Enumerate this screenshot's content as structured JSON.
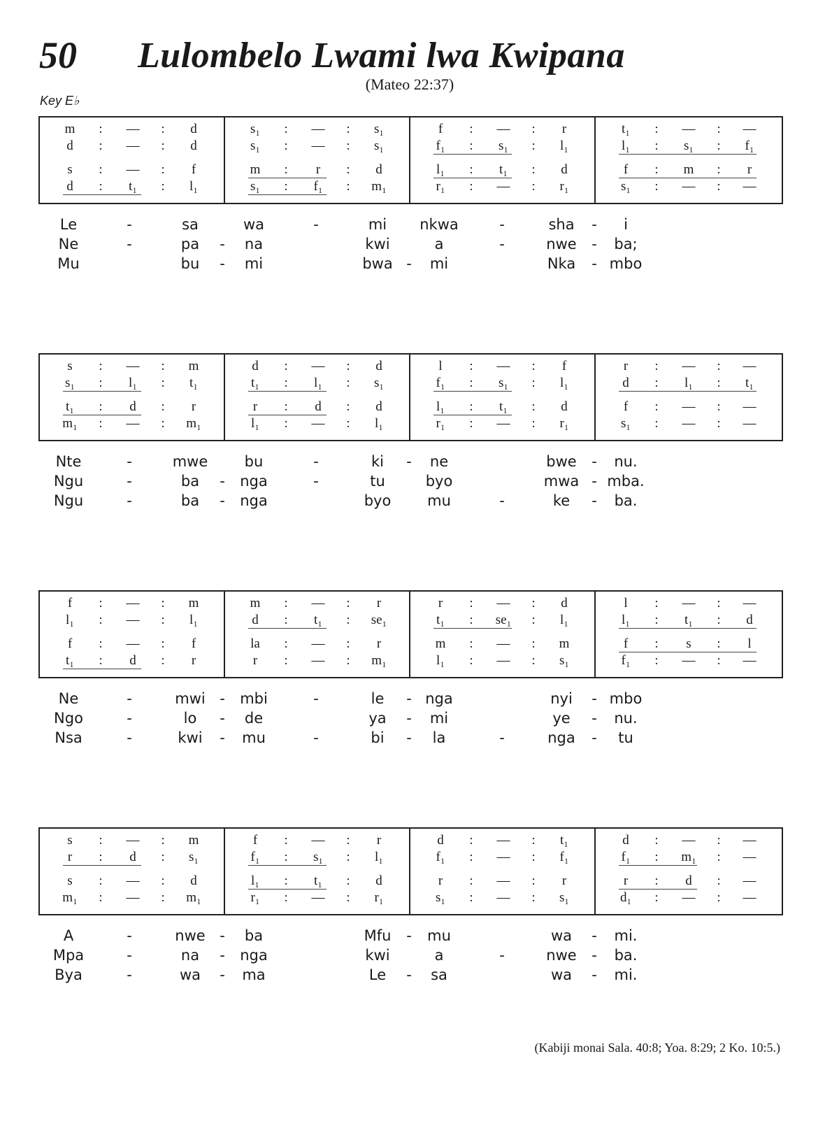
{
  "header": {
    "number": "50",
    "title": "Lulombelo Lwami lwa Kwipana",
    "scripture": "(Mateo 22:37)",
    "key": "Key E♭"
  },
  "systems": [
    {
      "measures": [
        {
          "rows": [
            {
              "n": [
                "m",
                "—",
                "d"
              ],
              "u": 0
            },
            {
              "n": [
                "d",
                "—",
                "d"
              ],
              "u": 0
            },
            {
              "n": [
                "s",
                "—",
                "f"
              ],
              "u": 0
            },
            {
              "n": [
                "d",
                "t₁",
                "l₁"
              ],
              "u": 2
            }
          ]
        },
        {
          "rows": [
            {
              "n": [
                "s₁",
                "—",
                "s₁"
              ],
              "u": 0
            },
            {
              "n": [
                "s₁",
                "—",
                "s₁"
              ],
              "u": 0
            },
            {
              "n": [
                "m",
                "r",
                "d"
              ],
              "u": 2
            },
            {
              "n": [
                "s₁",
                "f₁",
                "m₁"
              ],
              "u": 2
            }
          ]
        },
        {
          "rows": [
            {
              "n": [
                "f",
                "—",
                "r"
              ],
              "u": 0
            },
            {
              "n": [
                "f₁",
                "s₁",
                "l₁"
              ],
              "u": 2
            },
            {
              "n": [
                "l₁",
                "t₁",
                "d"
              ],
              "u": 2
            },
            {
              "n": [
                "r₁",
                "—",
                "r₁"
              ],
              "u": 0
            }
          ]
        },
        {
          "rows": [
            {
              "n": [
                "t₁",
                "—",
                "—"
              ],
              "u": 0
            },
            {
              "n": [
                "l₁",
                "s₁",
                "f₁"
              ],
              "u": 3
            },
            {
              "n": [
                "f",
                "m",
                "r"
              ],
              "u": 3
            },
            {
              "n": [
                "s₁",
                "—",
                "—"
              ],
              "u": 0
            }
          ]
        }
      ],
      "lyrics": [
        [
          "Le",
          "-",
          "sa",
          "",
          "wa",
          "-",
          "mi",
          "",
          "nkwa",
          "-",
          "sha",
          "-",
          "i"
        ],
        [
          "Ne",
          "-",
          "pa",
          "-",
          "na",
          "",
          "kwi",
          "",
          "a",
          "-",
          "nwe",
          "-",
          "ba;"
        ],
        [
          "Mu",
          "",
          "bu",
          "-",
          "mi",
          "",
          "bwa",
          "-",
          "mi",
          "",
          "Nka",
          "-",
          "mbo"
        ]
      ]
    },
    {
      "measures": [
        {
          "rows": [
            {
              "n": [
                "s",
                "—",
                "m"
              ],
              "u": 0
            },
            {
              "n": [
                "s₁",
                "l₁",
                "t₁"
              ],
              "u": 2
            },
            {
              "n": [
                "t₁",
                "d",
                "r"
              ],
              "u": 2
            },
            {
              "n": [
                "m₁",
                "—",
                "m₁"
              ],
              "u": 0
            }
          ]
        },
        {
          "rows": [
            {
              "n": [
                "d",
                "—",
                "d"
              ],
              "u": 0
            },
            {
              "n": [
                "t₁",
                "l₁",
                "s₁"
              ],
              "u": 2
            },
            {
              "n": [
                "r",
                "d",
                "d"
              ],
              "u": 2
            },
            {
              "n": [
                "l₁",
                "—",
                "l₁"
              ],
              "u": 0
            }
          ]
        },
        {
          "rows": [
            {
              "n": [
                "l",
                "—",
                "f"
              ],
              "u": 0
            },
            {
              "n": [
                "f₁",
                "s₁",
                "l₁"
              ],
              "u": 2
            },
            {
              "n": [
                "l₁",
                "t₁",
                "d"
              ],
              "u": 2
            },
            {
              "n": [
                "r₁",
                "—",
                "r₁"
              ],
              "u": 0
            }
          ]
        },
        {
          "rows": [
            {
              "n": [
                "r",
                "—",
                "—"
              ],
              "u": 0
            },
            {
              "n": [
                "d",
                "l₁",
                "t₁"
              ],
              "u": 3
            },
            {
              "n": [
                "f",
                "—",
                "—"
              ],
              "u": 0
            },
            {
              "n": [
                "s₁",
                "—",
                "—"
              ],
              "u": 0
            }
          ]
        }
      ],
      "lyrics": [
        [
          "Nte",
          "-",
          "mwe",
          "",
          "bu",
          "-",
          "ki",
          "-",
          "ne",
          "",
          "bwe",
          "-",
          "nu."
        ],
        [
          "Ngu",
          "-",
          "ba",
          "-",
          "nga",
          "-",
          "tu",
          "",
          "byo",
          "",
          "mwa",
          "-",
          "mba."
        ],
        [
          "Ngu",
          "-",
          "ba",
          "-",
          "nga",
          "",
          "byo",
          "",
          "mu",
          "-",
          "ke",
          "-",
          "ba."
        ]
      ]
    },
    {
      "measures": [
        {
          "rows": [
            {
              "n": [
                "f",
                "—",
                "m"
              ],
              "u": 0
            },
            {
              "n": [
                "l₁",
                "—",
                "l₁"
              ],
              "u": 0
            },
            {
              "n": [
                "f",
                "—",
                "f"
              ],
              "u": 0
            },
            {
              "n": [
                "t₁",
                "d",
                "r"
              ],
              "u": 2
            }
          ]
        },
        {
          "rows": [
            {
              "n": [
                "m",
                "—",
                "r"
              ],
              "u": 0
            },
            {
              "n": [
                "d",
                "t₁",
                "se₁"
              ],
              "u": 2
            },
            {
              "n": [
                "la",
                "—",
                "r"
              ],
              "u": 0
            },
            {
              "n": [
                "r",
                "—",
                "m₁"
              ],
              "u": 0
            }
          ]
        },
        {
          "rows": [
            {
              "n": [
                "r",
                "—",
                "d"
              ],
              "u": 0
            },
            {
              "n": [
                "t₁",
                "se₁",
                "l₁"
              ],
              "u": 2
            },
            {
              "n": [
                "m",
                "—",
                "m"
              ],
              "u": 0
            },
            {
              "n": [
                "l₁",
                "—",
                "s₁"
              ],
              "u": 0
            }
          ]
        },
        {
          "rows": [
            {
              "n": [
                "l",
                "—",
                "—"
              ],
              "u": 0
            },
            {
              "n": [
                "l₁",
                "t₁",
                "d"
              ],
              "u": 3
            },
            {
              "n": [
                "f",
                "s",
                "l"
              ],
              "u": 3
            },
            {
              "n": [
                "f₁",
                "—",
                "—"
              ],
              "u": 0
            }
          ]
        }
      ],
      "lyrics": [
        [
          "Ne",
          "-",
          "mwi",
          "-",
          "mbi",
          "-",
          "le",
          "-",
          "nga",
          "",
          "nyi",
          "-",
          "mbo"
        ],
        [
          "Ngo",
          "-",
          "lo",
          "-",
          "de",
          "",
          "ya",
          "-",
          "mi",
          "",
          "ye",
          "-",
          "nu."
        ],
        [
          "Nsa",
          "-",
          "kwi",
          "-",
          "mu",
          "-",
          "bi",
          "-",
          "la",
          "-",
          "nga",
          "-",
          "tu"
        ]
      ]
    },
    {
      "measures": [
        {
          "rows": [
            {
              "n": [
                "s",
                "—",
                "m"
              ],
              "u": 0
            },
            {
              "n": [
                "r",
                "d",
                "s₁"
              ],
              "u": 2
            },
            {
              "n": [
                "s",
                "—",
                "d"
              ],
              "u": 0
            },
            {
              "n": [
                "m₁",
                "—",
                "m₁"
              ],
              "u": 0
            }
          ]
        },
        {
          "rows": [
            {
              "n": [
                "f",
                "—",
                "r"
              ],
              "u": 0
            },
            {
              "n": [
                "f₁",
                "s₁",
                "l₁"
              ],
              "u": 2
            },
            {
              "n": [
                "l₁",
                "t₁",
                "d"
              ],
              "u": 2
            },
            {
              "n": [
                "r₁",
                "—",
                "r₁"
              ],
              "u": 0
            }
          ]
        },
        {
          "rows": [
            {
              "n": [
                "d",
                "—",
                "t₁"
              ],
              "u": 0
            },
            {
              "n": [
                "f₁",
                "—",
                "f₁"
              ],
              "u": 0
            },
            {
              "n": [
                "r",
                "—",
                "r"
              ],
              "u": 0
            },
            {
              "n": [
                "s₁",
                "—",
                "s₁"
              ],
              "u": 0
            }
          ]
        },
        {
          "rows": [
            {
              "n": [
                "d",
                "—",
                "—"
              ],
              "u": 0
            },
            {
              "n": [
                "f₁",
                "m₁",
                "—"
              ],
              "u": 2
            },
            {
              "n": [
                "r",
                "d",
                "—"
              ],
              "u": 2
            },
            {
              "n": [
                "d₁",
                "—",
                "—"
              ],
              "u": 0
            }
          ]
        }
      ],
      "lyrics": [
        [
          "A",
          "-",
          "nwe",
          "-",
          "ba",
          "",
          "Mfu",
          "-",
          "mu",
          "",
          "wa",
          "-",
          "mi."
        ],
        [
          "Mpa",
          "-",
          "na",
          "-",
          "nga",
          "",
          "kwi",
          "",
          "a",
          "-",
          "nwe",
          "-",
          "ba."
        ],
        [
          "Bya",
          "-",
          "wa",
          "-",
          "ma",
          "",
          "Le",
          "-",
          "sa",
          "",
          "wa",
          "-",
          "mi."
        ]
      ]
    }
  ],
  "colon": ":",
  "footer": "(Kabiji monai Sala. 40:8; Yoa. 8:29; 2 Ko. 10:5.)"
}
